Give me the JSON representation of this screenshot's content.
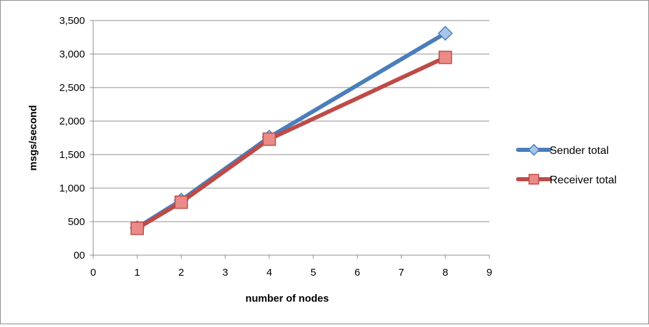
{
  "chart_data": {
    "type": "line",
    "title": "",
    "xlabel": "number of nodes",
    "ylabel": "msgs/second",
    "xlim": [
      0,
      9
    ],
    "ylim": [
      0,
      3500
    ],
    "x_ticks": [
      0,
      1,
      2,
      3,
      4,
      5,
      6,
      7,
      8,
      9
    ],
    "x_tick_labels": [
      "0",
      "1",
      "2",
      "3",
      "4",
      "5",
      "6",
      "7",
      "8",
      "9"
    ],
    "y_ticks": [
      0,
      500,
      1000,
      1500,
      2000,
      2500,
      3000,
      3500
    ],
    "y_tick_labels": [
      "00",
      "500",
      "1,000",
      "1,500",
      "2,000",
      "2,500",
      "3,000",
      "3,500"
    ],
    "grid": "horizontal",
    "legend_position": "right",
    "series": [
      {
        "name": "Sender total",
        "color": "#4a7ebb",
        "marker": "diamond",
        "x": [
          1,
          2,
          4,
          8
        ],
        "y": [
          410,
          820,
          1760,
          3310
        ]
      },
      {
        "name": "Receiver total",
        "color": "#be4b48",
        "marker": "square",
        "x": [
          1,
          2,
          4,
          8
        ],
        "y": [
          400,
          790,
          1730,
          2950
        ]
      }
    ]
  }
}
